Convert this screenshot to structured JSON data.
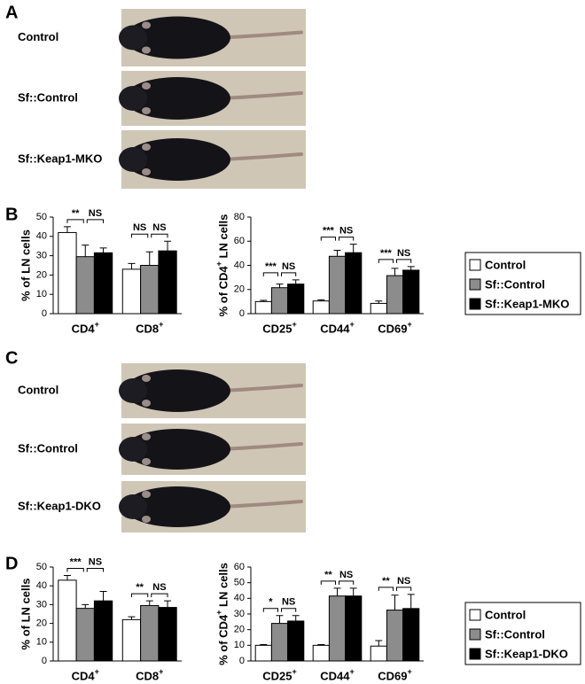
{
  "panels": [
    {
      "label": "A",
      "photos": [
        "Control",
        "Sf::Control",
        "Sf::Keap1-MKO"
      ]
    },
    {
      "label": "B"
    },
    {
      "label": "C",
      "photos": [
        "Control",
        "Sf::Control",
        "Sf::Keap1-DKO"
      ]
    },
    {
      "label": "D"
    }
  ],
  "chart_data": [
    {
      "type": "bar",
      "ylabel": "% of LN cells",
      "categories": [
        "CD4+",
        "CD8+"
      ],
      "ylim": [
        0,
        50
      ],
      "yticks": [
        0,
        10,
        20,
        30,
        40,
        50
      ],
      "annotations": [
        [
          "**",
          "NS"
        ],
        [
          "NS",
          "NS"
        ]
      ],
      "series": [
        {
          "color": "#ffffff",
          "values": [
            42,
            23
          ],
          "errors": [
            3,
            3
          ]
        },
        {
          "color": "#8c8c8c",
          "values": [
            29.5,
            25
          ],
          "errors": [
            6,
            7
          ]
        },
        {
          "color": "#000000",
          "values": [
            31.5,
            32.5
          ],
          "errors": [
            2.5,
            5
          ]
        }
      ]
    },
    {
      "type": "bar",
      "ylabel": "% of CD4+ LN cells",
      "categories": [
        "CD25+",
        "CD44+",
        "CD69+"
      ],
      "ylim": [
        0,
        80
      ],
      "yticks": [
        0,
        20,
        40,
        60,
        80
      ],
      "annotations": [
        [
          "***",
          "NS"
        ],
        [
          "***",
          "NS"
        ],
        [
          "***",
          "NS"
        ]
      ],
      "series": [
        {
          "name": "Control",
          "color": "#ffffff",
          "values": [
            10,
            10.5,
            8.5
          ],
          "errors": [
            1,
            1,
            2
          ]
        },
        {
          "name": "Sf::Control",
          "color": "#8c8c8c",
          "values": [
            21.5,
            47.5,
            31.5
          ],
          "errors": [
            3,
            5,
            6
          ]
        },
        {
          "name": "Sf::Keap1-MKO",
          "color": "#000000",
          "values": [
            24.5,
            50.5,
            36
          ],
          "errors": [
            3.5,
            7,
            3
          ]
        }
      ]
    },
    {
      "type": "bar",
      "ylabel": "% of LN cells",
      "categories": [
        "CD4+",
        "CD8+"
      ],
      "ylim": [
        0,
        50
      ],
      "yticks": [
        0,
        10,
        20,
        30,
        40,
        50
      ],
      "annotations": [
        [
          "***",
          "NS"
        ],
        [
          "**",
          "NS"
        ]
      ],
      "series": [
        {
          "color": "#ffffff",
          "values": [
            43,
            22
          ],
          "errors": [
            2.5,
            1.5
          ]
        },
        {
          "color": "#8c8c8c",
          "values": [
            28,
            29.5
          ],
          "errors": [
            2,
            2.5
          ]
        },
        {
          "color": "#000000",
          "values": [
            32,
            28.5
          ],
          "errors": [
            5,
            3.5
          ]
        }
      ]
    },
    {
      "type": "bar",
      "ylabel": "% of CD4+ LN cells",
      "categories": [
        "CD25+",
        "CD44+",
        "CD69+"
      ],
      "ylim": [
        0,
        60
      ],
      "yticks": [
        0,
        10,
        20,
        30,
        40,
        50,
        60
      ],
      "annotations": [
        [
          "*",
          "NS"
        ],
        [
          "**",
          "NS"
        ],
        [
          "**",
          "NS"
        ]
      ],
      "series": [
        {
          "name": "Control",
          "color": "#ffffff",
          "values": [
            10,
            10,
            9.5
          ],
          "errors": [
            0.5,
            0.5,
            3.5
          ]
        },
        {
          "name": "Sf::Control",
          "color": "#8c8c8c",
          "values": [
            24,
            41.5,
            32.5
          ],
          "errors": [
            5,
            5,
            9.5
          ]
        },
        {
          "name": "Sf::Keap1-DKO",
          "color": "#000000",
          "values": [
            25.5,
            41.5,
            33.5
          ],
          "errors": [
            3.5,
            5,
            9
          ]
        }
      ]
    }
  ]
}
